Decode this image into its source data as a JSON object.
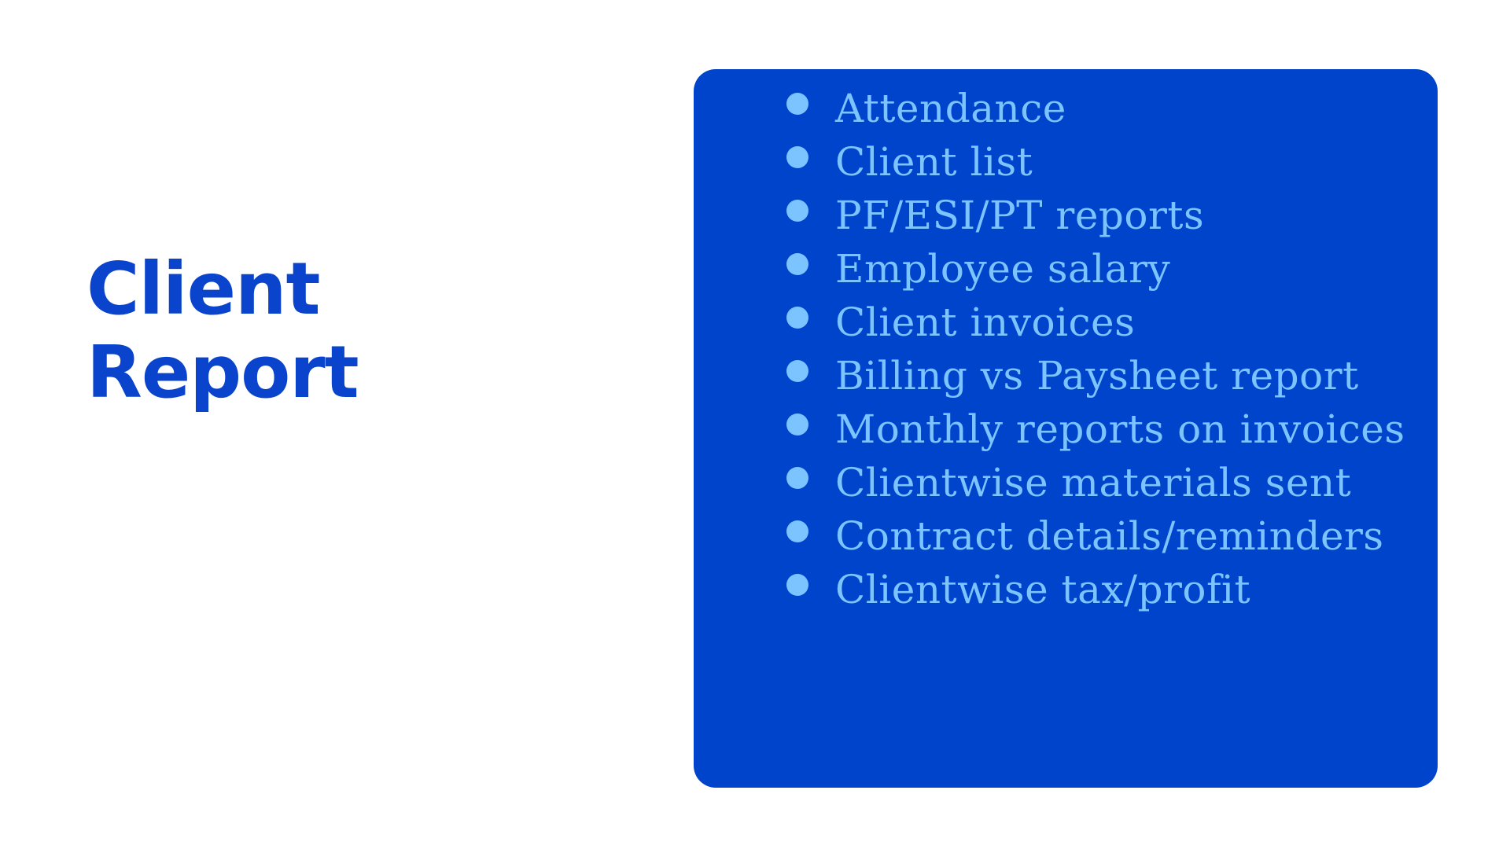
{
  "title": {
    "line1": "Client",
    "line2": "Report"
  },
  "report_items": [
    "Attendance",
    "Client list",
    "PF/ESI/PT reports",
    "Employee salary",
    "Client invoices",
    "Billing vs Paysheet report",
    "Monthly reports on invoices",
    "Clientwise materials sent",
    "Contract details/reminders",
    "Clientwise tax/profit"
  ],
  "colors": {
    "title": "#0b44cc",
    "panel": "#0044cc",
    "list_text": "#7cc4ff"
  }
}
